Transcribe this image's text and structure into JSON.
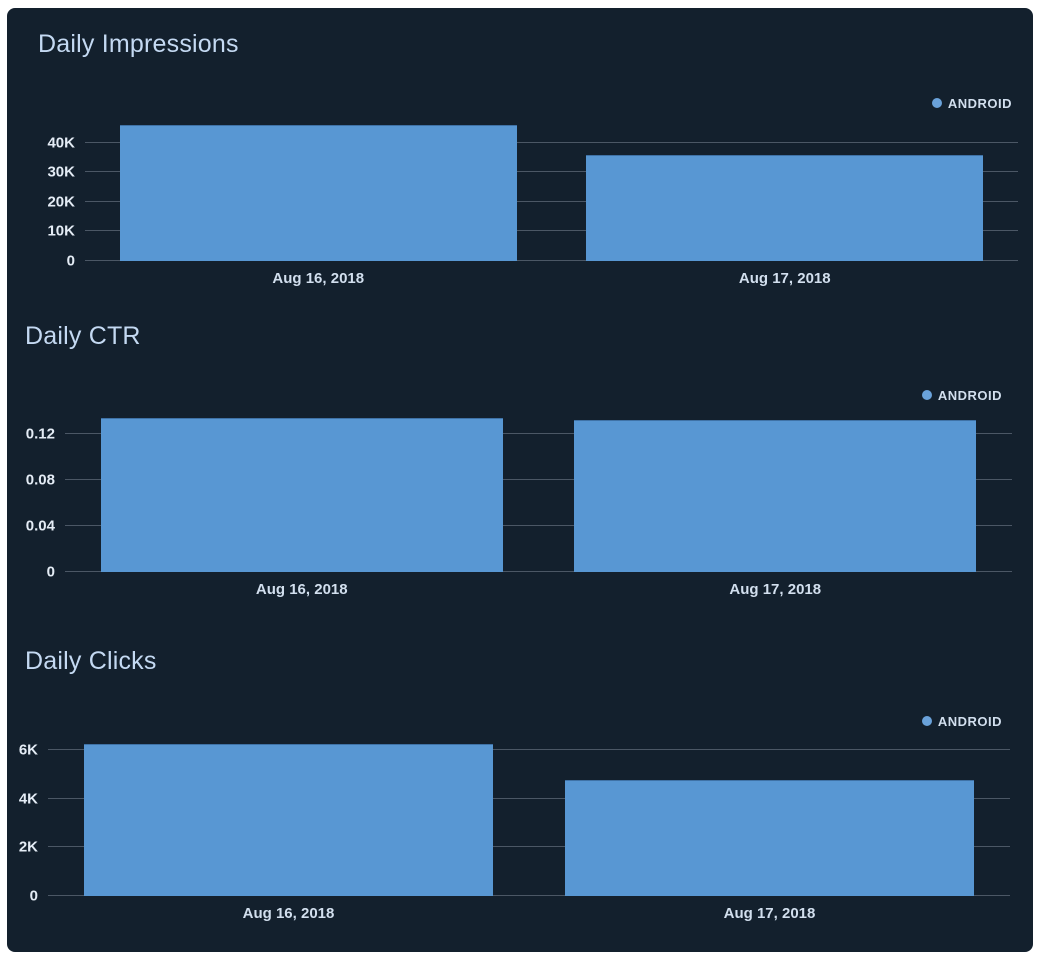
{
  "colors": {
    "page_bg": "#ffffff",
    "card_bg": "#13202d",
    "bar": "#5897d3",
    "bar_edge": "#3f72a6",
    "title": "#c4d9f2",
    "y_tick_label": "#e4ecf5",
    "x_tick_label": "#d2dfee",
    "legend_text": "#d2dfee",
    "legend_dot": "#6aa2da",
    "gridline": "#4b5765"
  },
  "chart_data": [
    {
      "type": "bar",
      "title": "Daily Impressions",
      "categories": [
        "Aug 16, 2018",
        "Aug 17, 2018"
      ],
      "series": [
        {
          "name": "ANDROID",
          "values": [
            46000,
            36000
          ]
        }
      ],
      "ylim": [
        0,
        47000
      ],
      "yticks": [
        {
          "value": 0,
          "label": "0"
        },
        {
          "value": 10000,
          "label": "10K"
        },
        {
          "value": 20000,
          "label": "20K"
        },
        {
          "value": 30000,
          "label": "30K"
        },
        {
          "value": 40000,
          "label": "40K"
        }
      ],
      "grid": true,
      "legend_position": "top-right"
    },
    {
      "type": "bar",
      "title": "Daily CTR",
      "categories": [
        "Aug 16, 2018",
        "Aug 17, 2018"
      ],
      "series": [
        {
          "name": "ANDROID",
          "values": [
            0.134,
            0.132
          ]
        }
      ],
      "ylim": [
        0,
        0.138
      ],
      "yticks": [
        {
          "value": 0,
          "label": "0"
        },
        {
          "value": 0.04,
          "label": "0.04"
        },
        {
          "value": 0.08,
          "label": "0.08"
        },
        {
          "value": 0.12,
          "label": "0.12"
        }
      ],
      "grid": true,
      "legend_position": "top-right"
    },
    {
      "type": "bar",
      "title": "Daily Clicks",
      "categories": [
        "Aug 16, 2018",
        "Aug 17, 2018"
      ],
      "series": [
        {
          "name": "ANDROID",
          "values": [
            6250,
            4750
          ]
        }
      ],
      "ylim": [
        0,
        6400
      ],
      "yticks": [
        {
          "value": 0,
          "label": "0"
        },
        {
          "value": 2000,
          "label": "2K"
        },
        {
          "value": 4000,
          "label": "4K"
        },
        {
          "value": 6000,
          "label": "6K"
        }
      ],
      "grid": true,
      "legend_position": "top-right"
    }
  ]
}
